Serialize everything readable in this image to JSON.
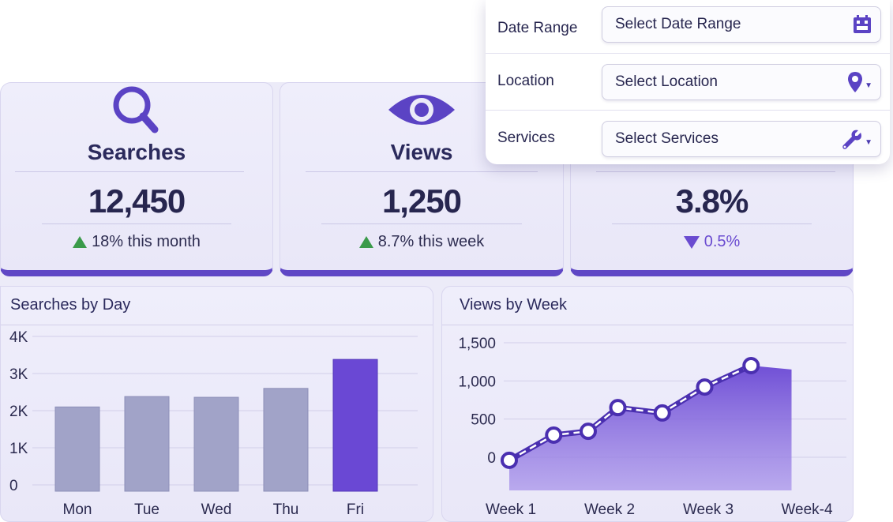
{
  "filters": {
    "date_range": {
      "label": "Date Range",
      "value": "Select Date Range",
      "icon": "calendar-icon"
    },
    "location": {
      "label": "Location",
      "value": "Select Location",
      "icon": "map-pin-icon"
    },
    "services": {
      "label": "Services",
      "value": "Select Services",
      "icon": "wrench-icon"
    }
  },
  "stats": {
    "searches": {
      "title": "Searches",
      "value": "12,450",
      "delta": "18% this month",
      "trend": "up",
      "icon": "search-icon"
    },
    "views": {
      "title": "Views",
      "value": "1,250",
      "delta": "8.7% this week",
      "trend": "up",
      "icon": "eye-icon"
    },
    "third": {
      "value": "3.8%",
      "delta": "0.5%",
      "trend": "down"
    }
  },
  "colors": {
    "accent": "#5f47c5",
    "bar_gray": "#a1a3c8",
    "bar_highlight": "#6a48d4",
    "up": "#3a9a4a"
  },
  "chart_data": [
    {
      "type": "bar",
      "title": "Searches by Day",
      "categories": [
        "Mon",
        "Tue",
        "Wed",
        "Thu",
        "Fri"
      ],
      "values": [
        2100,
        2380,
        2360,
        2600,
        3380
      ],
      "yticks": [
        "0",
        "1K",
        "2K",
        "3K",
        "4K"
      ],
      "ylim": [
        0,
        4000
      ],
      "highlight": "Fri",
      "grid": true
    },
    {
      "type": "area",
      "title": "Views by Week",
      "x": [
        1,
        1.45,
        1.8,
        2.1,
        2.55,
        2.98,
        3.45
      ],
      "values": [
        -40,
        290,
        340,
        650,
        580,
        920,
        1200
      ],
      "xticks": [
        {
          "label": "Week 1",
          "x": 1
        },
        {
          "label": "Week 2",
          "x": 2
        },
        {
          "label": "Week 3",
          "x": 3
        },
        {
          "label": "Week-4",
          "x": 4
        }
      ],
      "yticks": [
        "0",
        "500",
        "1,000",
        "1,500"
      ],
      "ylim": [
        0,
        1500
      ],
      "grid": true
    }
  ]
}
